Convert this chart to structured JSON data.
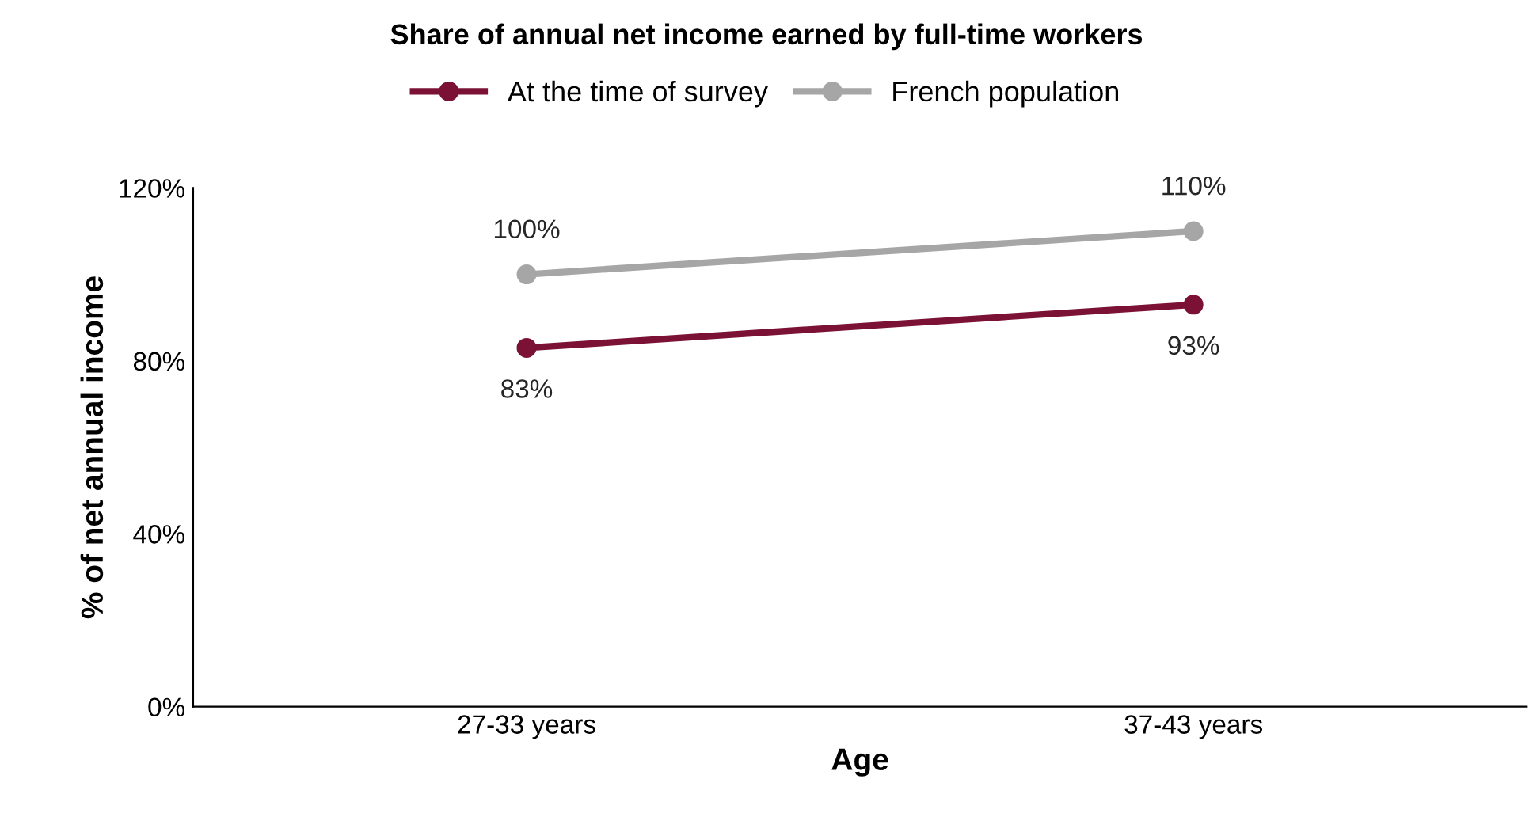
{
  "chart_data": {
    "type": "line",
    "title": "Share of annual net income earned by full-time workers",
    "xlabel": "Age",
    "ylabel": "% of net annual income",
    "categories": [
      "27-33 years",
      "37-43 years"
    ],
    "series": [
      {
        "name": "At the time of survey",
        "color": "#7b1235",
        "values": [
          83,
          93
        ],
        "value_labels": [
          "83%",
          "93%"
        ]
      },
      {
        "name": "French population",
        "color": "#a6a6a6",
        "values": [
          100,
          110
        ],
        "value_labels": [
          "100%",
          "110%"
        ]
      }
    ],
    "ylim": [
      0,
      120
    ],
    "yticks": [
      {
        "value": 0,
        "label": "0%"
      },
      {
        "value": 40,
        "label": "40%"
      },
      {
        "value": 80,
        "label": "80%"
      },
      {
        "value": 120,
        "label": "120%"
      }
    ],
    "grid": false,
    "legend": "top",
    "marker": "circle",
    "line_style": "solid"
  }
}
